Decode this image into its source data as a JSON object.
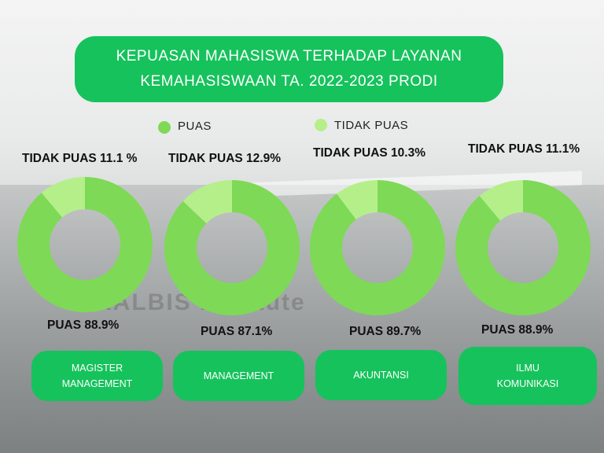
{
  "title": {
    "line1": "KEPUASAN MAHASISWA TERHADAP LAYANAN",
    "line2": "KEMAHASISWAAN TA. 2022-2023 PRODI"
  },
  "legend": [
    {
      "label": "PUAS",
      "color": "#7ed957"
    },
    {
      "label": "TIDAK PUAS",
      "color": "#b5ef8a"
    }
  ],
  "background_text": "KALBIS institute",
  "colors": {
    "puas": "#7ed957",
    "tidak_puas": "#b5ef8a",
    "accent": "#16c25c"
  },
  "chart_data": [
    {
      "type": "pie",
      "categories": [
        "PUAS",
        "TIDAK PUAS"
      ],
      "values": [
        88.9,
        11.1
      ],
      "labels": {
        "tidak_puas": "TIDAK PUAS 11.1 %",
        "puas": "PUAS 88.9%"
      },
      "program": "MAGISTER MANAGEMENT"
    },
    {
      "type": "pie",
      "categories": [
        "PUAS",
        "TIDAK PUAS"
      ],
      "values": [
        87.1,
        12.9
      ],
      "labels": {
        "tidak_puas": "TIDAK PUAS 12.9%",
        "puas": "PUAS 87.1%"
      },
      "program": "MANAGEMENT"
    },
    {
      "type": "pie",
      "categories": [
        "PUAS",
        "TIDAK PUAS"
      ],
      "values": [
        89.7,
        10.3
      ],
      "labels": {
        "tidak_puas": "TIDAK PUAS 10.3%",
        "puas": "PUAS 89.7%"
      },
      "program": "AKUNTANSI"
    },
    {
      "type": "pie",
      "categories": [
        "PUAS",
        "TIDAK PUAS"
      ],
      "values": [
        88.9,
        11.1
      ],
      "labels": {
        "tidak_puas": "TIDAK PUAS 11.1%",
        "puas": "PUAS 88.9%"
      },
      "program": "ILMU KOMUNIKASI"
    }
  ],
  "programs": [
    {
      "line1": "MAGISTER",
      "line2": "MANAGEMENT"
    },
    {
      "line1": "MANAGEMENT",
      "line2": ""
    },
    {
      "line1": "AKUNTANSI",
      "line2": ""
    },
    {
      "line1": "ILMU",
      "line2": "KOMUNIKASI"
    }
  ]
}
